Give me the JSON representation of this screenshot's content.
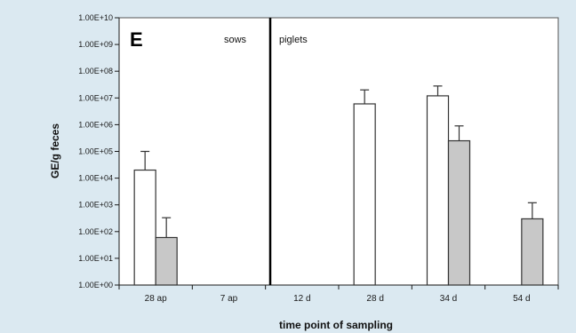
{
  "chart_data": {
    "type": "bar",
    "panel_label": "E",
    "xlabel": "time point of sampling",
    "ylabel": "GE/g feces",
    "y_scale": "log",
    "ylim": [
      1,
      10000000000
    ],
    "y_ticks": [
      "1.00E+00",
      "1.00E+01",
      "1.00E+02",
      "1.00E+03",
      "1.00E+04",
      "1.00E+05",
      "1.00E+06",
      "1.00E+07",
      "1.00E+08",
      "1.00E+09",
      "1.00E+10"
    ],
    "categories": [
      "28 ap",
      "7 ap",
      "12 d",
      "28 d",
      "34 d",
      "54 d"
    ],
    "groups": [
      {
        "label": "sows",
        "categories": [
          "28 ap",
          "7 ap"
        ]
      },
      {
        "label": "piglets",
        "categories": [
          "12 d",
          "28 d",
          "34 d",
          "54 d"
        ]
      }
    ],
    "series": [
      {
        "fill": "#ffffff",
        "values": [
          20000,
          null,
          null,
          6000000,
          12000000,
          null
        ],
        "error_upper": [
          100000,
          null,
          null,
          20000000,
          28000000,
          null
        ]
      },
      {
        "fill": "#c8c8c8",
        "values": [
          60,
          null,
          null,
          null,
          250000,
          300
        ],
        "error_upper": [
          330,
          null,
          null,
          null,
          900000,
          1200
        ]
      }
    ],
    "grid": false,
    "colors": {
      "background": "#dbe9f1",
      "plot_background": "#ffffff",
      "axis": "#1a1a1a"
    }
  }
}
